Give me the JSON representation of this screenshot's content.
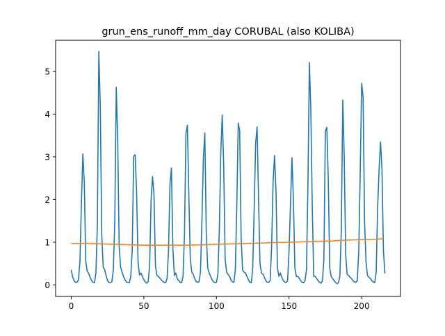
{
  "chart_data": {
    "type": "line",
    "title": "grun_ens_runoff_mm_day CORUBAL (also KOLIBA)",
    "xlabel": "",
    "ylabel": "",
    "xlim": [
      -10.75,
      226.75
    ],
    "ylim": [
      -0.27,
      5.73
    ],
    "xticks": [
      0,
      50,
      100,
      150,
      200
    ],
    "yticks": [
      0,
      1,
      2,
      3,
      4,
      5
    ],
    "grid": false,
    "legend": "none",
    "colors": {
      "series1": "#1f77b4",
      "series2": "#ff7f0e"
    },
    "series": [
      {
        "values": [
          0.35,
          0.18,
          0.1,
          0.06,
          0.06,
          0.12,
          0.55,
          1.9,
          3.07,
          2.4,
          0.55,
          0.32,
          0.27,
          0.18,
          0.1,
          0.06,
          0.05,
          0.28,
          1.4,
          5.47,
          4.2,
          1.2,
          0.42,
          0.36,
          0.22,
          0.1,
          0.05,
          0.05,
          0.08,
          0.35,
          1.5,
          4.63,
          3.4,
          0.9,
          0.42,
          0.3,
          0.2,
          0.12,
          0.07,
          0.05,
          0.05,
          0.2,
          0.8,
          3.01,
          3.05,
          2.2,
          0.55,
          0.23,
          0.28,
          0.2,
          0.12,
          0.07,
          0.04,
          0.08,
          0.45,
          2.0,
          2.54,
          2.1,
          0.45,
          0.22,
          0.2,
          0.16,
          0.12,
          0.08,
          0.06,
          0.05,
          0.15,
          0.8,
          2.35,
          2.74,
          0.85,
          0.22,
          0.28,
          0.15,
          0.1,
          0.06,
          0.05,
          0.2,
          1.2,
          3.55,
          3.74,
          2.1,
          0.6,
          0.3,
          0.25,
          0.15,
          0.08,
          0.06,
          0.07,
          0.3,
          1.5,
          2.96,
          3.56,
          1.2,
          0.4,
          0.28,
          0.2,
          0.12,
          0.07,
          0.05,
          0.06,
          0.25,
          1.3,
          3.1,
          3.98,
          2.8,
          0.6,
          0.3,
          0.25,
          0.2,
          0.12,
          0.07,
          0.06,
          0.35,
          1.8,
          3.79,
          3.62,
          1.1,
          0.35,
          0.3,
          0.28,
          0.2,
          0.12,
          0.06,
          0.05,
          0.4,
          1.8,
          3.32,
          3.7,
          2.0,
          0.5,
          0.28,
          0.25,
          0.18,
          0.1,
          0.06,
          0.06,
          0.1,
          0.9,
          2.4,
          3.03,
          2.2,
          0.4,
          0.2,
          0.28,
          0.18,
          0.1,
          0.07,
          0.05,
          0.1,
          0.8,
          1.9,
          2.98,
          2.0,
          0.4,
          0.2,
          0.2,
          0.16,
          0.1,
          0.06,
          0.05,
          0.1,
          0.35,
          2.3,
          5.21,
          4.1,
          1.8,
          0.2,
          0.2,
          0.15,
          0.1,
          0.06,
          0.04,
          0.1,
          0.6,
          3.6,
          3.69,
          2.5,
          0.4,
          0.2,
          0.15,
          0.1,
          0.06,
          0.03,
          0.05,
          0.2,
          1.3,
          4.33,
          3.0,
          0.7,
          0.25,
          0.22,
          0.18,
          0.15,
          0.1,
          0.07,
          0.06,
          0.1,
          0.8,
          2.6,
          4.72,
          4.4,
          1.5,
          0.55,
          0.22,
          0.18,
          0.15,
          0.1,
          0.07,
          0.05,
          0.3,
          1.8,
          2.7,
          3.35,
          2.7,
          0.8,
          0.27
        ]
      },
      {
        "x": [
          0,
          10,
          20,
          30,
          40,
          50,
          60,
          70,
          80,
          90,
          100,
          110,
          120,
          130,
          140,
          150,
          160,
          170,
          180,
          190,
          200,
          210,
          215
        ],
        "values": [
          0.97,
          0.97,
          0.96,
          0.95,
          0.94,
          0.93,
          0.93,
          0.93,
          0.93,
          0.94,
          0.95,
          0.96,
          0.97,
          0.98,
          0.99,
          1.0,
          1.01,
          1.02,
          1.03,
          1.05,
          1.06,
          1.07,
          1.08
        ]
      }
    ]
  }
}
